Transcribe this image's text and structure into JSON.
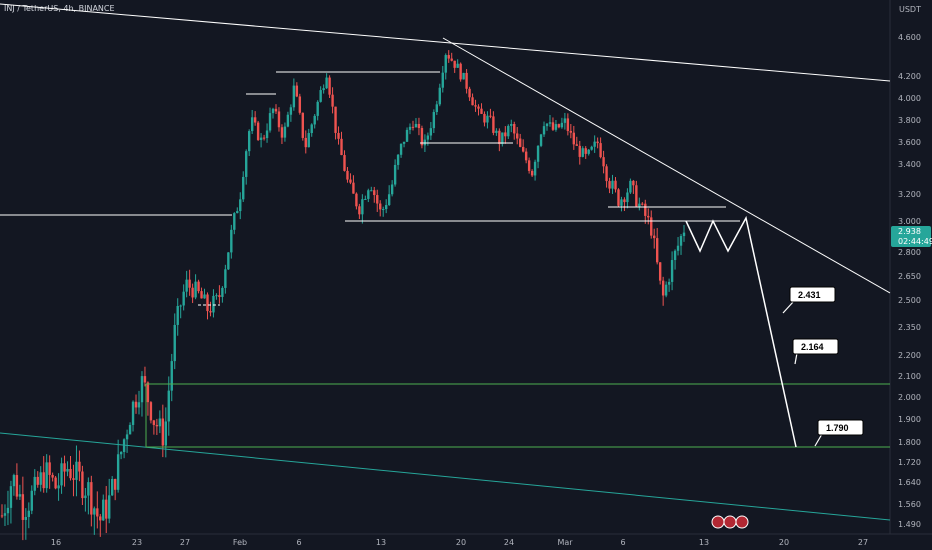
{
  "header": {
    "symbol_line": "INJ / TetherUS, 4h, BINANCE"
  },
  "axis": {
    "currency_label": "USDT"
  },
  "price_tag": {
    "price": "2.938",
    "countdown": "02:44:49",
    "color": "#26a69a"
  },
  "colors": {
    "background": "#131722",
    "up": "#26a69a",
    "down": "#ef5350",
    "drawing": "#ffffff",
    "zone": "#4caf50",
    "channel": "#26a69a"
  },
  "chart_data": {
    "type": "candlestick",
    "ylim": [
      1.45,
      4.72
    ],
    "y_ticks": [
      "4.600",
      "4.200",
      "4.000",
      "3.800",
      "3.600",
      "3.400",
      "3.200",
      "3.000",
      "2.800",
      "2.650",
      "2.500",
      "2.350",
      "2.200",
      "2.100",
      "2.000",
      "1.900",
      "1.800",
      "1.720",
      "1.640",
      "1.560",
      "1.490"
    ],
    "x_ticks": [
      "16",
      "23",
      "27",
      "Feb",
      "6",
      "13",
      "20",
      "24",
      "Mar",
      "6",
      "13",
      "20",
      "27"
    ],
    "targets": [
      {
        "label": "2.431",
        "value": 2.431
      },
      {
        "label": "2.164",
        "value": 2.164
      },
      {
        "label": "1.790",
        "value": 1.79
      }
    ],
    "horizontal_levels": [
      3.04,
      3.0,
      3.6,
      4.22,
      4.04,
      3.1
    ],
    "support_zone": {
      "top": 2.06,
      "bottom": 1.78
    },
    "price_path": [
      [
        1.52,
        1.66,
        1.55,
        1.6,
        1.68,
        1.62,
        1.7,
        1.66,
        1.61,
        1.5,
        1.58,
        1.76,
        1.95,
        2.08,
        1.9,
        1.82,
        2.35,
        2.6,
        2.55,
        2.45,
        2.5,
        2.85,
        3.2,
        3.8,
        3.6,
        3.9,
        3.65,
        4.1,
        3.55,
        3.9,
        4.25,
        3.6,
        3.25,
        3.1,
        3.3,
        3.05,
        3.25,
        3.6,
        3.8,
        3.55,
        3.9,
        4.45,
        4.3,
        4.1,
        3.85,
        3.8,
        3.6,
        3.75,
        3.5,
        3.35,
        3.8,
        3.7,
        3.78,
        3.55,
        3.45,
        3.6,
        3.3,
        3.15,
        3.25,
        3.1,
        2.95,
        2.5,
        2.75,
        2.95
      ]
    ]
  }
}
